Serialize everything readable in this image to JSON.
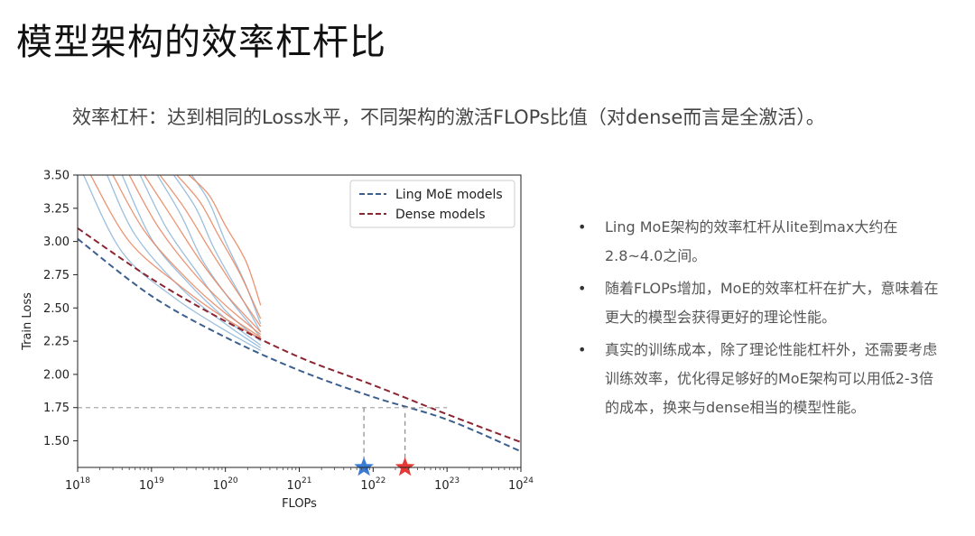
{
  "slide": {
    "title": "模型架构的效率杠杆比",
    "subtitle": "效率杠杆：达到相同的Loss水平，不同架构的激活FLOPs比值（对dense而言是全激活）。",
    "bullets": [
      "Ling MoE架构的效率杠杆从lite到max大约在2.8~4.0之间。",
      "随着FLOPs增加，MoE的效率杠杆在扩大，意味着在更大的模型会获得更好的理论性能。",
      "真实的训练成本，除了理论性能杠杆外，还需要考虑训练效率，优化得足够好的MoE架构可以用低2-3倍的成本，换来与dense相当的模型性能。"
    ]
  },
  "chart_data": {
    "type": "line",
    "xlabel": "FLOPs",
    "ylabel": "Train Loss",
    "xscale": "log",
    "xlim": [
      1e+18,
      1e+24
    ],
    "ylim": [
      1.3,
      3.5
    ],
    "x_ticks": [
      {
        "base": "10",
        "exp": "18",
        "value": 1e+18
      },
      {
        "base": "10",
        "exp": "19",
        "value": 1e+19
      },
      {
        "base": "10",
        "exp": "20",
        "value": 1e+20
      },
      {
        "base": "10",
        "exp": "21",
        "value": 1e+21
      },
      {
        "base": "10",
        "exp": "22",
        "value": 1e+22
      },
      {
        "base": "10",
        "exp": "23",
        "value": 1e+23
      },
      {
        "base": "10",
        "exp": "24",
        "value": 1e+24
      }
    ],
    "y_ticks": [
      "1.50",
      "1.75",
      "2.00",
      "2.25",
      "2.50",
      "2.75",
      "3.00",
      "3.25",
      "3.50"
    ],
    "legend": {
      "position": "top-right"
    },
    "series": [
      {
        "name": "Ling MoE models",
        "color": "#3b5f8f",
        "dash": true,
        "points": [
          [
            1e+18,
            3.02
          ],
          [
            1e+19,
            2.59
          ],
          [
            1e+20,
            2.28
          ],
          [
            1e+21,
            2.03
          ],
          [
            1e+22,
            1.83
          ],
          [
            1e+23,
            1.66
          ],
          [
            1e+24,
            1.42
          ]
        ]
      },
      {
        "name": "Dense models",
        "color": "#8b2530",
        "dash": true,
        "points": [
          [
            1e+18,
            3.1
          ],
          [
            1e+19,
            2.72
          ],
          [
            1e+20,
            2.4
          ],
          [
            1e+21,
            2.13
          ],
          [
            1e+22,
            1.92
          ],
          [
            1e+23,
            1.7
          ],
          [
            1e+24,
            1.49
          ]
        ]
      }
    ],
    "training_curves": {
      "moe_color": "#8ab4d8",
      "dense_color": "#e8825c",
      "moe": [
        [
          [
            1.2e+18,
            3.5
          ],
          [
            4e+18,
            2.92
          ],
          [
            2e+19,
            2.58
          ],
          [
            1e+20,
            2.33
          ],
          [
            3e+20,
            2.18
          ]
        ],
        [
          [
            2.5e+18,
            3.5
          ],
          [
            6e+18,
            3.05
          ],
          [
            2.5e+19,
            2.65
          ],
          [
            1e+20,
            2.38
          ],
          [
            3e+20,
            2.2
          ]
        ],
        [
          [
            4e+18,
            3.5
          ],
          [
            1e+19,
            3.02
          ],
          [
            3e+19,
            2.7
          ],
          [
            1e+20,
            2.42
          ],
          [
            3e+20,
            2.22
          ]
        ],
        [
          [
            7e+18,
            3.5
          ],
          [
            1.6e+19,
            3.1
          ],
          [
            4e+19,
            2.78
          ],
          [
            1e+20,
            2.48
          ],
          [
            3e+20,
            2.25
          ]
        ],
        [
          [
            1.2e+19,
            3.5
          ],
          [
            2.5e+19,
            3.2
          ],
          [
            5e+19,
            2.85
          ],
          [
            1.2e+20,
            2.55
          ],
          [
            3e+20,
            2.28
          ]
        ],
        [
          [
            2e+19,
            3.5
          ],
          [
            4e+19,
            3.25
          ],
          [
            7e+19,
            2.95
          ],
          [
            1.5e+20,
            2.62
          ],
          [
            3e+20,
            2.32
          ]
        ],
        [
          [
            3.5e+19,
            3.5
          ],
          [
            6e+19,
            3.3
          ],
          [
            1e+20,
            3.0
          ],
          [
            1.8e+20,
            2.7
          ],
          [
            3e+20,
            2.38
          ]
        ]
      ],
      "dense": [
        [
          [
            1.5e+18,
            3.5
          ],
          [
            5e+18,
            3.0
          ],
          [
            2.5e+19,
            2.66
          ],
          [
            1e+20,
            2.42
          ],
          [
            3e+20,
            2.27
          ]
        ],
        [
          [
            3e+18,
            3.5
          ],
          [
            8e+18,
            3.08
          ],
          [
            3e+19,
            2.72
          ],
          [
            1e+20,
            2.46
          ],
          [
            3e+20,
            2.28
          ]
        ],
        [
          [
            5e+18,
            3.5
          ],
          [
            1.2e+19,
            3.12
          ],
          [
            3.5e+19,
            2.78
          ],
          [
            1e+20,
            2.52
          ],
          [
            3e+20,
            2.3
          ]
        ],
        [
          [
            8e+18,
            3.5
          ],
          [
            1.8e+19,
            3.2
          ],
          [
            4.5e+19,
            2.86
          ],
          [
            1.1e+20,
            2.58
          ],
          [
            3e+20,
            2.32
          ]
        ],
        [
          [
            1.3e+19,
            3.5
          ],
          [
            2.8e+19,
            3.25
          ],
          [
            6e+19,
            2.95
          ],
          [
            1.3e+20,
            2.66
          ],
          [
            3e+20,
            2.36
          ]
        ],
        [
          [
            2.2e+19,
            3.5
          ],
          [
            4.5e+19,
            3.3
          ],
          [
            8e+19,
            3.05
          ],
          [
            1.6e+20,
            2.75
          ],
          [
            3e+20,
            2.42
          ]
        ],
        [
          [
            3.2e+19,
            3.5
          ],
          [
            6e+19,
            3.35
          ],
          [
            1e+20,
            3.12
          ],
          [
            1.9e+20,
            2.85
          ],
          [
            3e+20,
            2.52
          ]
        ]
      ]
    },
    "reference": {
      "loss": 1.75,
      "moe_flops": 7.5e+21,
      "dense_flops": 2.7e+22,
      "moe_marker_color": "#3a7bd5",
      "dense_marker_color": "#e53935"
    }
  }
}
